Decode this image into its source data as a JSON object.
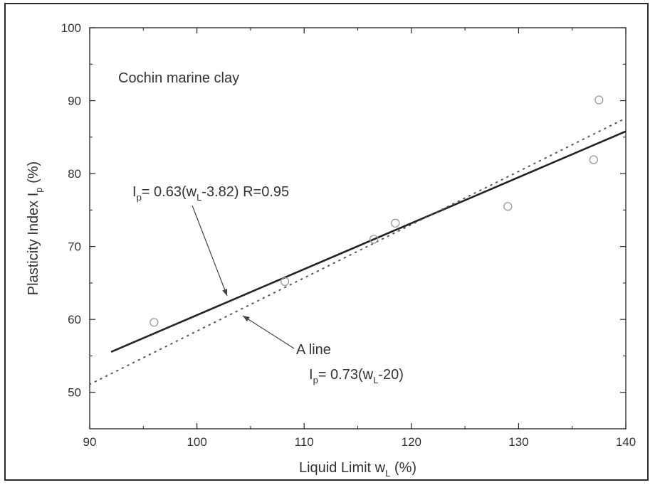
{
  "chart_data": {
    "type": "scatter",
    "title": "",
    "annotation_title": "Cochin marine clay",
    "xlabel": {
      "text": "Liquid Limit w",
      "sub": "L",
      "unit": " (%)"
    },
    "ylabel": {
      "text": "Plasticity Index I",
      "sub": "p",
      "unit": " (%)"
    },
    "xlim": [
      90,
      140
    ],
    "ylim": [
      45,
      100
    ],
    "xticks": [
      90,
      100,
      110,
      120,
      130,
      140
    ],
    "yticks": [
      50,
      60,
      70,
      80,
      90,
      100
    ],
    "grid": false,
    "series": [
      {
        "marker": "open-circle",
        "points": [
          {
            "x": 96,
            "y": 59.6
          },
          {
            "x": 108.2,
            "y": 65.2
          },
          {
            "x": 116.5,
            "y": 71.0
          },
          {
            "x": 118.5,
            "y": 73.2
          },
          {
            "x": 129,
            "y": 75.5
          },
          {
            "x": 137,
            "y": 81.9
          },
          {
            "x": 137.5,
            "y": 90.1
          }
        ]
      }
    ],
    "lines": [
      {
        "style": "solid",
        "slope": 0.63,
        "offset": 3.82,
        "x_range": [
          92,
          140
        ],
        "label": {
          "I": "I",
          "sub": "p",
          "mid": "= 0.63(w",
          "sub2": "L",
          "tail": "-3.82)  R=0.95"
        }
      },
      {
        "style": "dotted",
        "slope": 0.73,
        "offset": 20,
        "x_range": [
          90,
          140
        ],
        "name": "A line",
        "label": {
          "I": "I",
          "sub": "p",
          "mid": "= 0.73(w",
          "sub2": "L",
          "tail": "-20)"
        }
      }
    ]
  }
}
